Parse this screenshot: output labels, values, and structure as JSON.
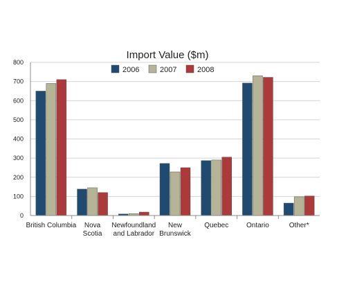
{
  "chart_data": {
    "type": "bar",
    "title": "Import Value ($m)",
    "xlabel": "",
    "ylabel": "",
    "ylim": [
      0,
      800
    ],
    "yticks": [
      0,
      100,
      200,
      300,
      400,
      500,
      600,
      700,
      800
    ],
    "grid": true,
    "legend_position": "top-center",
    "categories": [
      [
        "British Columbia"
      ],
      [
        "Nova",
        "Scotia"
      ],
      [
        "Newfoundland",
        "and Labrador"
      ],
      [
        "New",
        "Brunswick"
      ],
      [
        "Quebec"
      ],
      [
        "Ontario"
      ],
      [
        "Other*"
      ]
    ],
    "series": [
      {
        "name": "2006",
        "color": "#1f4b70",
        "values": [
          650,
          138,
          8,
          272,
          287,
          692,
          65
        ]
      },
      {
        "name": "2007",
        "color": "#b5b497",
        "values": [
          690,
          145,
          10,
          228,
          290,
          730,
          98
        ]
      },
      {
        "name": "2008",
        "color": "#ad3a3a",
        "values": [
          710,
          120,
          18,
          250,
          305,
          722,
          102
        ]
      }
    ]
  }
}
